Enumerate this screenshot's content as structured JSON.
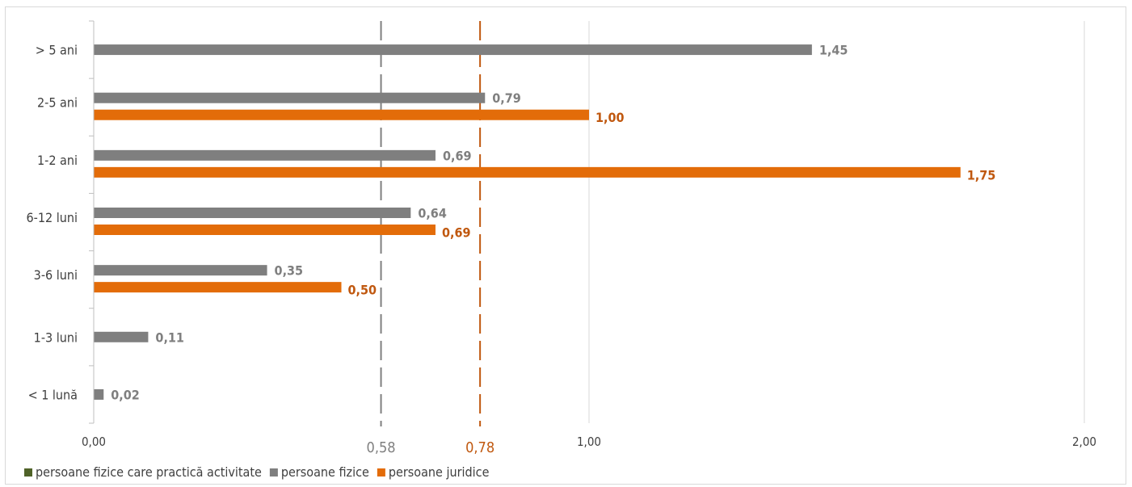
{
  "chart_data": {
    "type": "bar",
    "orientation": "horizontal",
    "categories": [
      "< 1 lună",
      "1-3 luni",
      "3-6 luni",
      "6-12 luni",
      "1-2 ani",
      "2-5 ani",
      "> 5 ani"
    ],
    "series": [
      {
        "name": "persoane fizice care practică activitate",
        "color": "#4f6228",
        "values": [
          null,
          null,
          null,
          null,
          null,
          null,
          null
        ],
        "labels": [
          "",
          "",
          "",
          "",
          "",
          "",
          ""
        ]
      },
      {
        "name": "persoane fizice",
        "color": "#7f7f7f",
        "values": [
          0.02,
          0.11,
          0.35,
          0.64,
          0.69,
          0.79,
          1.45
        ],
        "labels": [
          "0,02",
          "0,11",
          "0,35",
          "0,64",
          "0,69",
          "0,79",
          "1,45"
        ]
      },
      {
        "name": "persoane juridice",
        "color": "#e36c09",
        "values": [
          null,
          null,
          0.5,
          0.69,
          1.75,
          1.0,
          null
        ],
        "labels": [
          "",
          "",
          "0,50",
          "0,69",
          "1,75",
          "1,00",
          ""
        ]
      }
    ],
    "reference_lines": [
      {
        "value": 0.58,
        "label": "0,58",
        "color": "#7f7f7f"
      },
      {
        "value": 0.78,
        "label": "0,78",
        "color": "#c0580f"
      }
    ],
    "x_ticks": [
      {
        "value": 0,
        "label": "0,00"
      },
      {
        "value": 1,
        "label": "1,00"
      },
      {
        "value": 2,
        "label": "2,00"
      }
    ],
    "xlim": [
      0,
      2
    ],
    "grid": "vertical",
    "legend_position": "bottom-left",
    "title": "",
    "xlabel": "",
    "ylabel": ""
  }
}
